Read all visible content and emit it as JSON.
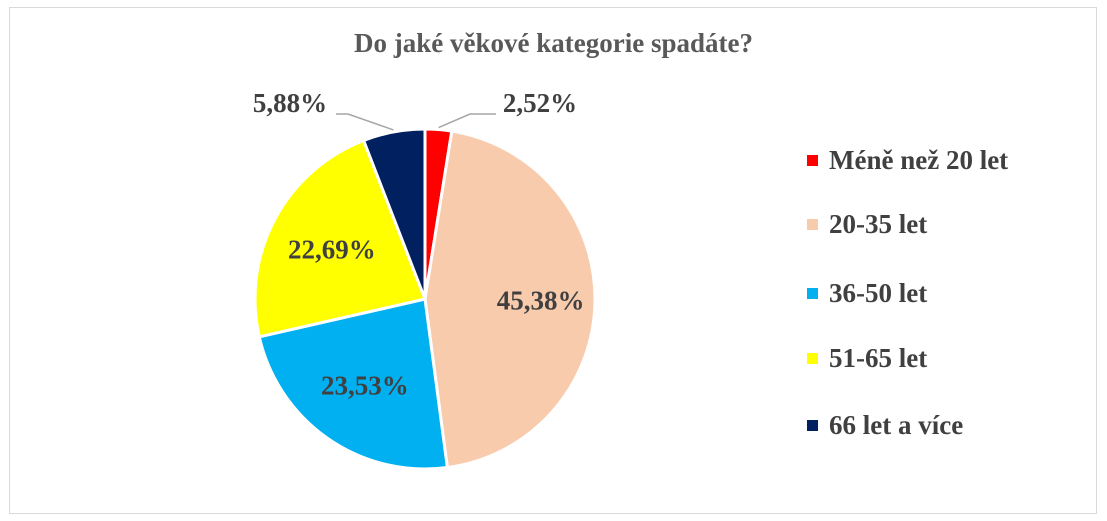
{
  "chart_data": {
    "type": "pie",
    "title": "Do jaké věkové kategorie spadáte?",
    "legend_position": "right",
    "categories": [
      "Méně než 20 let",
      "20-35 let",
      "36-50 let",
      "51-65 let",
      "66 let a více"
    ],
    "values": [
      2.52,
      45.38,
      23.53,
      22.69,
      5.88
    ],
    "data_labels": [
      "2,52%",
      "45,38%",
      "23,53%",
      "22,69%",
      "5,88%"
    ],
    "colors": [
      "#ff0000",
      "#f8cbad",
      "#00b0f0",
      "#ffff00",
      "#002060"
    ]
  }
}
